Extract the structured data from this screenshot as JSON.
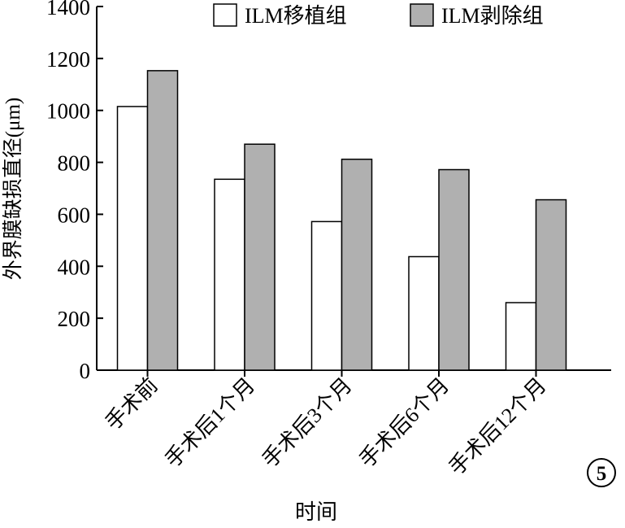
{
  "chart_data": {
    "type": "bar",
    "xlabel": "时间",
    "ylabel": "外界膜缺损直径(μm)",
    "ylim": [
      0,
      1400
    ],
    "yticks": [
      0,
      200,
      400,
      600,
      800,
      1000,
      1200,
      1400
    ],
    "categories": [
      "手术前",
      "手术后1个月",
      "手术后3个月",
      "手术后6个月",
      "手术后12个月"
    ],
    "series": [
      {
        "name": "ILM移植组",
        "values": [
          1015,
          735,
          572,
          437,
          260
        ],
        "color": "#ffffff"
      },
      {
        "name": "ILM剥除组",
        "values": [
          1153,
          870,
          812,
          772,
          656
        ],
        "color": "#b0b0b0"
      }
    ],
    "grid": false,
    "legend": "top-right",
    "panel_label": "5"
  }
}
